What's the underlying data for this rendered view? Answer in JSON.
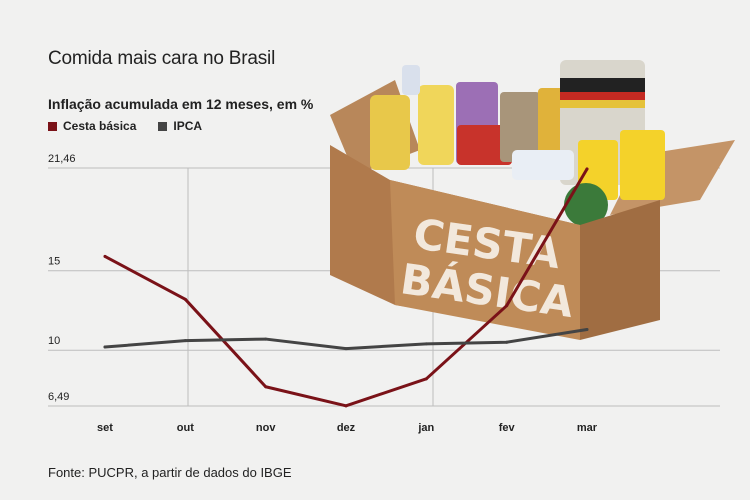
{
  "headline": "Comida mais cara no Brasil",
  "source": "Fonte: PUCPR, a partir de dados do IBGE",
  "box_image": {
    "text_line1": "CESTA",
    "text_line2": "BÁSICA"
  },
  "chart_data": {
    "type": "line",
    "title": "Inflação acumulada em 12 meses, em %",
    "xlabel": "",
    "ylabel": "",
    "categories": [
      "set",
      "out",
      "nov",
      "dez",
      "jan",
      "fev",
      "mar"
    ],
    "yticks": [
      {
        "value": 21.46,
        "label": "21,46"
      },
      {
        "value": 15,
        "label": "15"
      },
      {
        "value": 10,
        "label": "10"
      },
      {
        "value": 6.49,
        "label": "6,49"
      }
    ],
    "ylim": [
      6.49,
      21.46
    ],
    "grid": true,
    "legend_position": "top-left",
    "series": [
      {
        "name": "Cesta básica",
        "color": "#7a1218",
        "values": [
          15.9,
          13.2,
          7.7,
          6.5,
          8.2,
          12.8,
          21.4
        ]
      },
      {
        "name": "IPCA",
        "color": "#444444",
        "values": [
          10.2,
          10.6,
          10.7,
          10.1,
          10.4,
          10.5,
          11.3
        ]
      }
    ]
  }
}
